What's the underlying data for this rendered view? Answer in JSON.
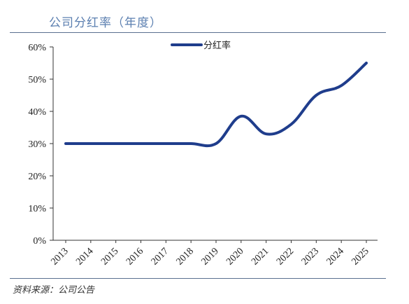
{
  "header": {
    "title": "公司分红率（年度）"
  },
  "footer": {
    "source": "资料来源：公司公告"
  },
  "chart_data": {
    "type": "line",
    "title": "公司分红率（年度）",
    "xlabel": "",
    "ylabel": "",
    "categories": [
      "2013",
      "2014",
      "2015",
      "2016",
      "2017",
      "2018",
      "2019",
      "2020",
      "2021",
      "2022",
      "2023",
      "2024",
      "2025"
    ],
    "series": [
      {
        "name": "分红率",
        "values": [
          30,
          30,
          30,
          30,
          30,
          30,
          30,
          38.5,
          33,
          36,
          45,
          48,
          55
        ],
        "color": "#1f3d8c"
      }
    ],
    "ylim": [
      0,
      60
    ],
    "yticks": [
      0,
      10,
      20,
      30,
      40,
      50,
      60
    ],
    "ytick_labels": [
      "0%",
      "10%",
      "20%",
      "30%",
      "40%",
      "50%",
      "60%"
    ],
    "legend_position": "top-center",
    "grid": false
  }
}
